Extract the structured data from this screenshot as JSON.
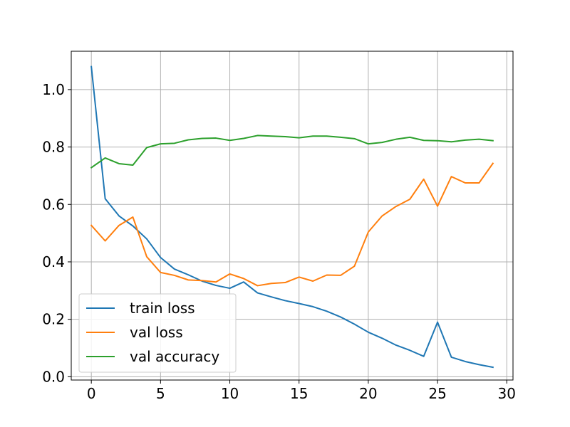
{
  "chart_data": {
    "type": "line",
    "title": "",
    "xlabel": "",
    "ylabel": "",
    "xlim": [
      -1.45,
      30.45
    ],
    "ylim": [
      -0.0115,
      1.1335
    ],
    "xticks": [
      0,
      5,
      10,
      15,
      20,
      25,
      30
    ],
    "yticks": [
      0.0,
      0.2,
      0.4,
      0.6,
      0.8,
      1.0
    ],
    "xtick_labels": [
      "0",
      "5",
      "10",
      "15",
      "20",
      "25",
      "30"
    ],
    "ytick_labels": [
      "0.0",
      "0.2",
      "0.4",
      "0.6",
      "0.8",
      "1.0"
    ],
    "grid": true,
    "legend_position": "lower-left",
    "x": [
      0,
      1,
      2,
      3,
      4,
      5,
      6,
      7,
      8,
      9,
      10,
      11,
      12,
      13,
      14,
      15,
      16,
      17,
      18,
      19,
      20,
      21,
      22,
      23,
      24,
      25,
      26,
      27,
      28,
      29
    ],
    "series": [
      {
        "name": "train loss",
        "color": "#1f77b4",
        "values": [
          1.08,
          0.62,
          0.56,
          0.525,
          0.48,
          0.415,
          0.375,
          0.355,
          0.333,
          0.318,
          0.308,
          0.33,
          0.292,
          0.278,
          0.265,
          0.255,
          0.244,
          0.228,
          0.208,
          0.183,
          0.155,
          0.134,
          0.11,
          0.092,
          0.071,
          0.19,
          0.068,
          0.053,
          0.042,
          0.033
        ]
      },
      {
        "name": "val loss",
        "color": "#ff7f0e",
        "values": [
          0.527,
          0.473,
          0.527,
          0.556,
          0.418,
          0.363,
          0.353,
          0.337,
          0.335,
          0.33,
          0.358,
          0.342,
          0.317,
          0.325,
          0.328,
          0.347,
          0.333,
          0.354,
          0.353,
          0.385,
          0.504,
          0.56,
          0.593,
          0.618,
          0.688,
          0.594,
          0.697,
          0.675,
          0.675,
          0.743
        ]
      },
      {
        "name": "val accuracy",
        "color": "#2ca02c",
        "values": [
          0.728,
          0.762,
          0.742,
          0.737,
          0.798,
          0.811,
          0.813,
          0.825,
          0.83,
          0.831,
          0.823,
          0.83,
          0.84,
          0.838,
          0.836,
          0.832,
          0.838,
          0.838,
          0.834,
          0.829,
          0.811,
          0.816,
          0.827,
          0.834,
          0.823,
          0.822,
          0.818,
          0.824,
          0.827,
          0.822
        ]
      }
    ]
  }
}
